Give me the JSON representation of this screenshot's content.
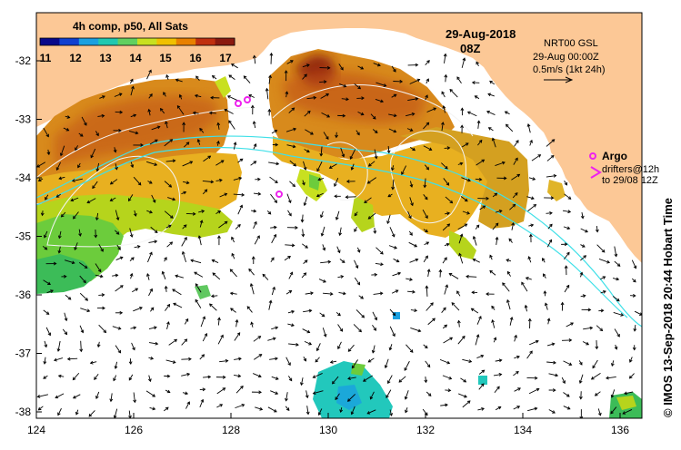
{
  "colorbar": {
    "title": "4h comp, p50, All Sats",
    "ticks": [
      "11",
      "12",
      "13",
      "14",
      "15",
      "16",
      "17"
    ],
    "colors": [
      "#08088a",
      "#1040d0",
      "#1aa0e0",
      "#20c8b0",
      "#60d060",
      "#c8e020",
      "#f0c000",
      "#e88000",
      "#c03010",
      "#8a1a10"
    ]
  },
  "date_label": "29-Aug-2018",
  "time_label": "08Z",
  "info_box": {
    "line1": "NRT00 GSL",
    "line2": "29-Aug 00:00Z",
    "line3": "0.5m/s (1kt 24h)"
  },
  "argo": {
    "title": "Argo",
    "line1": "drifters@12h",
    "line2": "to 29/08 12Z"
  },
  "x_axis": {
    "ticks": [
      "124",
      "126",
      "128",
      "130",
      "132",
      "134",
      "136"
    ]
  },
  "y_axis": {
    "ticks": [
      "-32",
      "-33",
      "-34",
      "-35",
      "-36",
      "-37",
      "-38"
    ]
  },
  "side_credit": "© IMOS 13-Sep-2018 20:44 Hobart Time",
  "colors": {
    "land": "#fcc896",
    "ocean": "#ffffff",
    "contour_white": "#f4f4f4",
    "shelf_cyan": "#40e0e8",
    "argo_magenta": "#ee22ee"
  }
}
